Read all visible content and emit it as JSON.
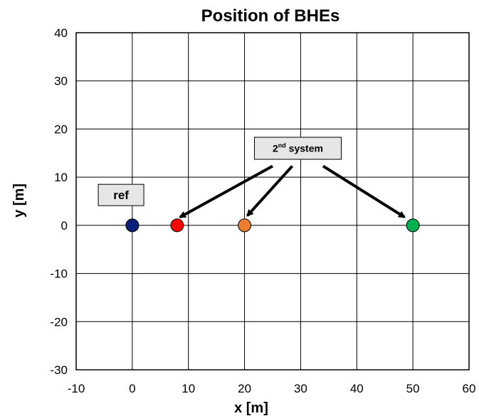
{
  "chart_data": {
    "type": "scatter",
    "title": "Position of BHEs",
    "xlabel": "x [m]",
    "ylabel": "y [m]",
    "xlim": [
      -10,
      60
    ],
    "ylim": [
      -30,
      40
    ],
    "xticks": [
      -10,
      0,
      10,
      20,
      30,
      40,
      50,
      60
    ],
    "yticks": [
      -30,
      -20,
      -10,
      0,
      10,
      20,
      30,
      40
    ],
    "grid": true,
    "points": [
      {
        "x": 0,
        "y": 0,
        "color": "#0a1f7a"
      },
      {
        "x": 8,
        "y": 0,
        "color": "#ff0000"
      },
      {
        "x": 20,
        "y": 0,
        "color": "#ed7d31"
      },
      {
        "x": 50,
        "y": 0,
        "color": "#00b050"
      }
    ],
    "annotations": [
      {
        "id": "ref",
        "text": "ref",
        "x": -2,
        "y": 6.3,
        "targets": []
      },
      {
        "id": "second-system",
        "text_main": "2",
        "text_sup": "nd",
        "text_rest": " system",
        "x": 29.5,
        "y": 16,
        "targets": [
          {
            "from": [
              25,
              12.3
            ],
            "to": [
              8.5,
              1.7
            ]
          },
          {
            "from": [
              28.5,
              12.3
            ],
            "to": [
              20.5,
              2
            ]
          },
          {
            "from": [
              34,
              12.3
            ],
            "to": [
              48.5,
              1.7
            ]
          }
        ]
      }
    ]
  }
}
